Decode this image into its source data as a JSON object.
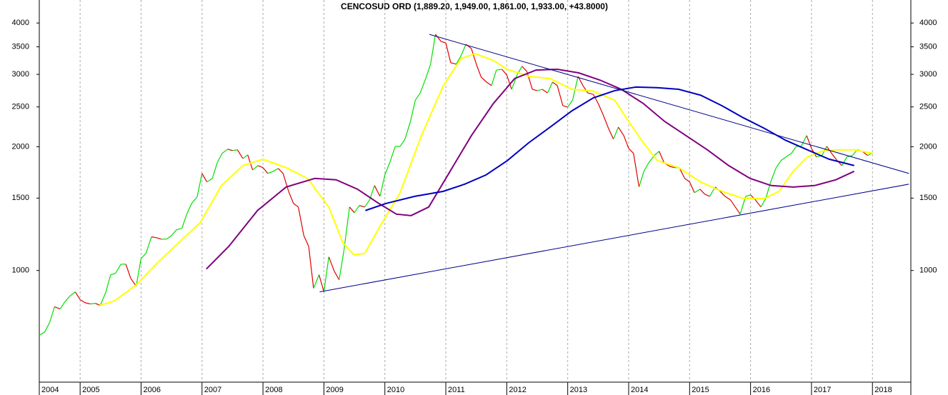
{
  "chart_data": {
    "type": "line",
    "title": "CENCOSUD ORD (1,889.20, 1,949.00, 1,861.00, 1,933.00, +43.8000)",
    "log_scale": true,
    "grid": true,
    "xlim": [
      2004.33,
      2018.63
    ],
    "xticks": [
      2004,
      2005,
      2006,
      2007,
      2008,
      2009,
      2010,
      2011,
      2012,
      2013,
      2014,
      2015,
      2016,
      2017,
      2018
    ],
    "ylim": [
      535,
      4550
    ],
    "yticks": [
      1000,
      1500,
      2000,
      2500,
      3000,
      3500,
      4000
    ],
    "series": [
      {
        "up_color": "#00e000",
        "down_color": "#e00000",
        "x": [
          2004.33,
          2004.42,
          2004.5,
          2004.58,
          2004.67,
          2004.75,
          2004.83,
          2004.92,
          2005,
          2005.08,
          2005.17,
          2005.25,
          2005.33,
          2005.42,
          2005.5,
          2005.58,
          2005.67,
          2005.75,
          2005.83,
          2005.92,
          2006,
          2006.08,
          2006.17,
          2006.25,
          2006.33,
          2006.42,
          2006.5,
          2006.58,
          2006.67,
          2006.75,
          2006.83,
          2006.92,
          2007,
          2007.08,
          2007.17,
          2007.25,
          2007.33,
          2007.42,
          2007.5,
          2007.58,
          2007.67,
          2007.75,
          2007.83,
          2007.92,
          2008,
          2008.08,
          2008.17,
          2008.25,
          2008.33,
          2008.42,
          2008.5,
          2008.58,
          2008.67,
          2008.75,
          2008.83,
          2008.92,
          2009,
          2009.08,
          2009.17,
          2009.25,
          2009.33,
          2009.42,
          2009.5,
          2009.58,
          2009.67,
          2009.75,
          2009.83,
          2009.92,
          2010,
          2010.08,
          2010.17,
          2010.25,
          2010.33,
          2010.42,
          2010.5,
          2010.58,
          2010.67,
          2010.75,
          2010.83,
          2010.92,
          2011,
          2011.08,
          2011.17,
          2011.25,
          2011.33,
          2011.42,
          2011.5,
          2011.58,
          2011.67,
          2011.75,
          2011.83,
          2011.92,
          2012,
          2012.08,
          2012.17,
          2012.25,
          2012.33,
          2012.42,
          2012.5,
          2012.58,
          2012.67,
          2012.75,
          2012.83,
          2012.92,
          2013,
          2013.08,
          2013.17,
          2013.25,
          2013.33,
          2013.42,
          2013.5,
          2013.58,
          2013.67,
          2013.75,
          2013.83,
          2013.92,
          2014,
          2014.08,
          2014.17,
          2014.25,
          2014.33,
          2014.42,
          2014.5,
          2014.58,
          2014.67,
          2014.75,
          2014.83,
          2014.92,
          2015,
          2015.08,
          2015.17,
          2015.25,
          2015.33,
          2015.42,
          2015.5,
          2015.58,
          2015.67,
          2015.75,
          2015.83,
          2015.92,
          2016,
          2016.08,
          2016.17,
          2016.25,
          2016.33,
          2016.42,
          2016.5,
          2016.58,
          2016.67,
          2016.75,
          2016.83,
          2016.92,
          2017,
          2017.08,
          2017.17,
          2017.25,
          2017.33,
          2017.42,
          2017.5,
          2017.58,
          2017.67,
          2017.75,
          2017.83,
          2017.92,
          2018
        ],
        "values": [
          695,
          709,
          747,
          816,
          806,
          839,
          866,
          887,
          849,
          835,
          829,
          832,
          822,
          884,
          976,
          984,
          1036,
          1036,
          957,
          916,
          1070,
          1100,
          1207,
          1202,
          1192,
          1192,
          1216,
          1256,
          1266,
          1371,
          1456,
          1510,
          1722,
          1642,
          1675,
          1830,
          1927,
          1973,
          1958,
          1966,
          1872,
          1911,
          1756,
          1800,
          1779,
          1722,
          1743,
          1771,
          1722,
          1558,
          1456,
          1427,
          1216,
          1145,
          905,
          976,
          887,
          1079,
          996,
          949,
          1123,
          1427,
          1382,
          1439,
          1427,
          1485,
          1609,
          1515,
          1708,
          1830,
          2004,
          2004,
          2087,
          2305,
          2597,
          2703,
          2930,
          3177,
          3753,
          3609,
          3578,
          3202,
          3177,
          3331,
          3550,
          3466,
          3177,
          2953,
          2872,
          2816,
          3073,
          3086,
          2991,
          2759,
          2991,
          3139,
          3048,
          2759,
          2738,
          2759,
          2703,
          2872,
          2816,
          2517,
          2497,
          2597,
          2967,
          2816,
          2703,
          2682,
          2548,
          2395,
          2215,
          2087,
          2232,
          2129,
          1981,
          1927,
          1596,
          1743,
          1830,
          1903,
          1950,
          1830,
          1793,
          1779,
          1779,
          1675,
          1642,
          1546,
          1577,
          1533,
          1515,
          1596,
          1558,
          1515,
          1485,
          1427,
          1371,
          1515,
          1527,
          1485,
          1427,
          1497,
          1642,
          1779,
          1851,
          1889,
          1927,
          2004,
          2004,
          2129,
          1981,
          1889,
          1903,
          2004,
          1927,
          1851,
          1800,
          1889,
          1903,
          1966,
          1950,
          1905,
          1933
        ]
      },
      {
        "color": "#ffff00",
        "x": [
          2005.32,
          2005.56,
          2005.91,
          2006.27,
          2006.62,
          2006.97,
          2007.32,
          2007.67,
          2008.0,
          2008.38,
          2008.73,
          2009.08,
          2009.31,
          2009.49,
          2009.67,
          2009.9,
          2010.25,
          2010.6,
          2010.96,
          2011.25,
          2011.48,
          2011.78,
          2012.01,
          2012.36,
          2012.71,
          2013.07,
          2013.42,
          2013.77,
          2014.0,
          2014.24,
          2014.47,
          2014.82,
          2015.18,
          2015.53,
          2015.88,
          2016.23,
          2016.47,
          2016.7,
          2016.93,
          2017.17,
          2017.4,
          2017.7,
          2018.01
        ],
        "values": [
          822,
          843,
          919,
          1045,
          1169,
          1307,
          1609,
          1800,
          1865,
          1779,
          1675,
          1427,
          1169,
          1092,
          1100,
          1266,
          1546,
          2129,
          2816,
          3277,
          3369,
          3242,
          3086,
          2967,
          2930,
          2759,
          2730,
          2597,
          2305,
          2045,
          1851,
          1779,
          1642,
          1558,
          1497,
          1497,
          1558,
          1743,
          1889,
          1950,
          1966,
          1966,
          1927
        ]
      },
      {
        "color": "#800080",
        "x": [
          2007.07,
          2007.44,
          2007.91,
          2008.38,
          2008.85,
          2009.2,
          2009.55,
          2009.9,
          2010.19,
          2010.43,
          2010.72,
          2011.07,
          2011.42,
          2011.78,
          2012.13,
          2012.48,
          2012.83,
          2013.18,
          2013.53,
          2013.88,
          2014.24,
          2014.59,
          2014.94,
          2015.29,
          2015.64,
          2015.99,
          2016.34,
          2016.7,
          2017.05,
          2017.4,
          2017.7
        ],
        "values": [
          1008,
          1145,
          1399,
          1596,
          1675,
          1662,
          1577,
          1456,
          1371,
          1360,
          1427,
          1743,
          2129,
          2548,
          2930,
          3073,
          3086,
          3025,
          2905,
          2759,
          2548,
          2305,
          2129,
          1966,
          1800,
          1675,
          1609,
          1596,
          1609,
          1662,
          1743
        ]
      },
      {
        "color": "#0000c0",
        "x": [
          2009.68,
          2010.02,
          2010.49,
          2010.96,
          2011.31,
          2011.66,
          2012.01,
          2012.36,
          2012.71,
          2013.07,
          2013.42,
          2013.77,
          2014.12,
          2014.47,
          2014.82,
          2015.18,
          2015.53,
          2015.88,
          2016.23,
          2016.58,
          2016.93,
          2017.29,
          2017.7
        ],
        "values": [
          1399,
          1456,
          1515,
          1558,
          1622,
          1708,
          1851,
          2045,
          2232,
          2446,
          2630,
          2738,
          2794,
          2784,
          2759,
          2670,
          2517,
          2353,
          2215,
          2072,
          1966,
          1865,
          1800
        ]
      },
      {
        "color": "#00008b",
        "x": [
          2010.73,
          2018.6
        ],
        "values": [
          3753,
          1722
        ]
      },
      {
        "color": "#00008b",
        "x": [
          2008.93,
          2018.6
        ],
        "values": [
          887,
          1622
        ]
      }
    ]
  }
}
